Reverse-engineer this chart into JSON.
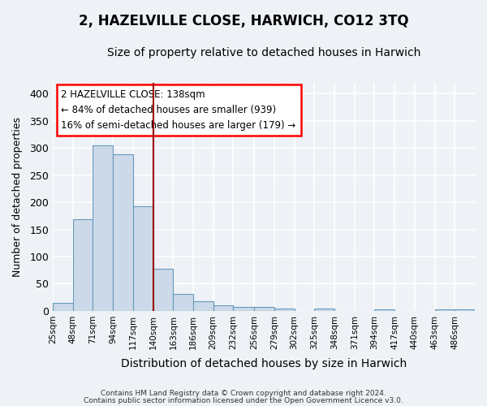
{
  "title": "2, HAZELVILLE CLOSE, HARWICH, CO12 3TQ",
  "subtitle": "Size of property relative to detached houses in Harwich",
  "xlabel": "Distribution of detached houses by size in Harwich",
  "ylabel": "Number of detached properties",
  "footer_line1": "Contains HM Land Registry data © Crown copyright and database right 2024.",
  "footer_line2": "Contains public sector information licensed under the Open Government Licence v3.0.",
  "bar_color": "#ccd9e8",
  "bar_edge_color": "#6699bb",
  "annotation_line1": "2 HAZELVILLE CLOSE: 138sqm",
  "annotation_line2": "← 84% of detached houses are smaller (939)",
  "annotation_line3": "16% of semi-detached houses are larger (179) →",
  "property_line_x": 140,
  "property_line_color": "#990000",
  "categories": [
    "25sqm",
    "48sqm",
    "71sqm",
    "94sqm",
    "117sqm",
    "140sqm",
    "163sqm",
    "186sqm",
    "209sqm",
    "232sqm",
    "256sqm",
    "279sqm",
    "302sqm",
    "325sqm",
    "348sqm",
    "371sqm",
    "394sqm",
    "417sqm",
    "440sqm",
    "463sqm",
    "486sqm"
  ],
  "bin_edges": [
    25,
    48,
    71,
    94,
    117,
    140,
    163,
    186,
    209,
    232,
    256,
    279,
    302,
    325,
    348,
    371,
    394,
    417,
    440,
    463,
    486,
    509
  ],
  "values": [
    15,
    168,
    305,
    288,
    192,
    78,
    31,
    18,
    10,
    8,
    8,
    5,
    0,
    4,
    0,
    0,
    3,
    0,
    0,
    3,
    3
  ],
  "ylim": [
    0,
    420
  ],
  "yticks": [
    0,
    50,
    100,
    150,
    200,
    250,
    300,
    350,
    400
  ],
  "background_color": "#eef2f7",
  "plot_background": "#eef2f7",
  "grid_color": "#ffffff",
  "title_fontsize": 12,
  "subtitle_fontsize": 10
}
